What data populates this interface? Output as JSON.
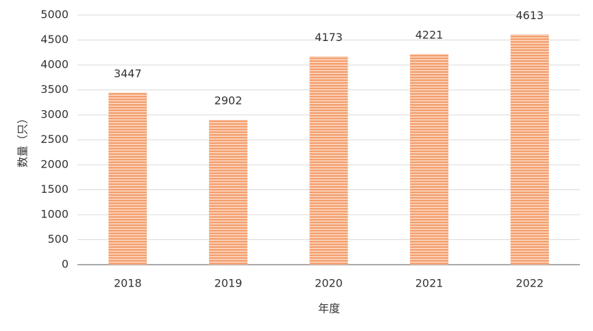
{
  "chart_data": {
    "type": "bar",
    "x_label": "年度",
    "y_label": "数量（只）",
    "categories": [
      "2018",
      "2019",
      "2020",
      "2021",
      "2022"
    ],
    "values": [
      3447,
      2902,
      4173,
      4221,
      4613
    ],
    "color": "#f4a070",
    "ylim": [
      0,
      5000
    ],
    "yticks": [
      0,
      500,
      1000,
      1500,
      2000,
      2500,
      3000,
      3500,
      4000,
      4500,
      5000
    ],
    "grid": true
  }
}
